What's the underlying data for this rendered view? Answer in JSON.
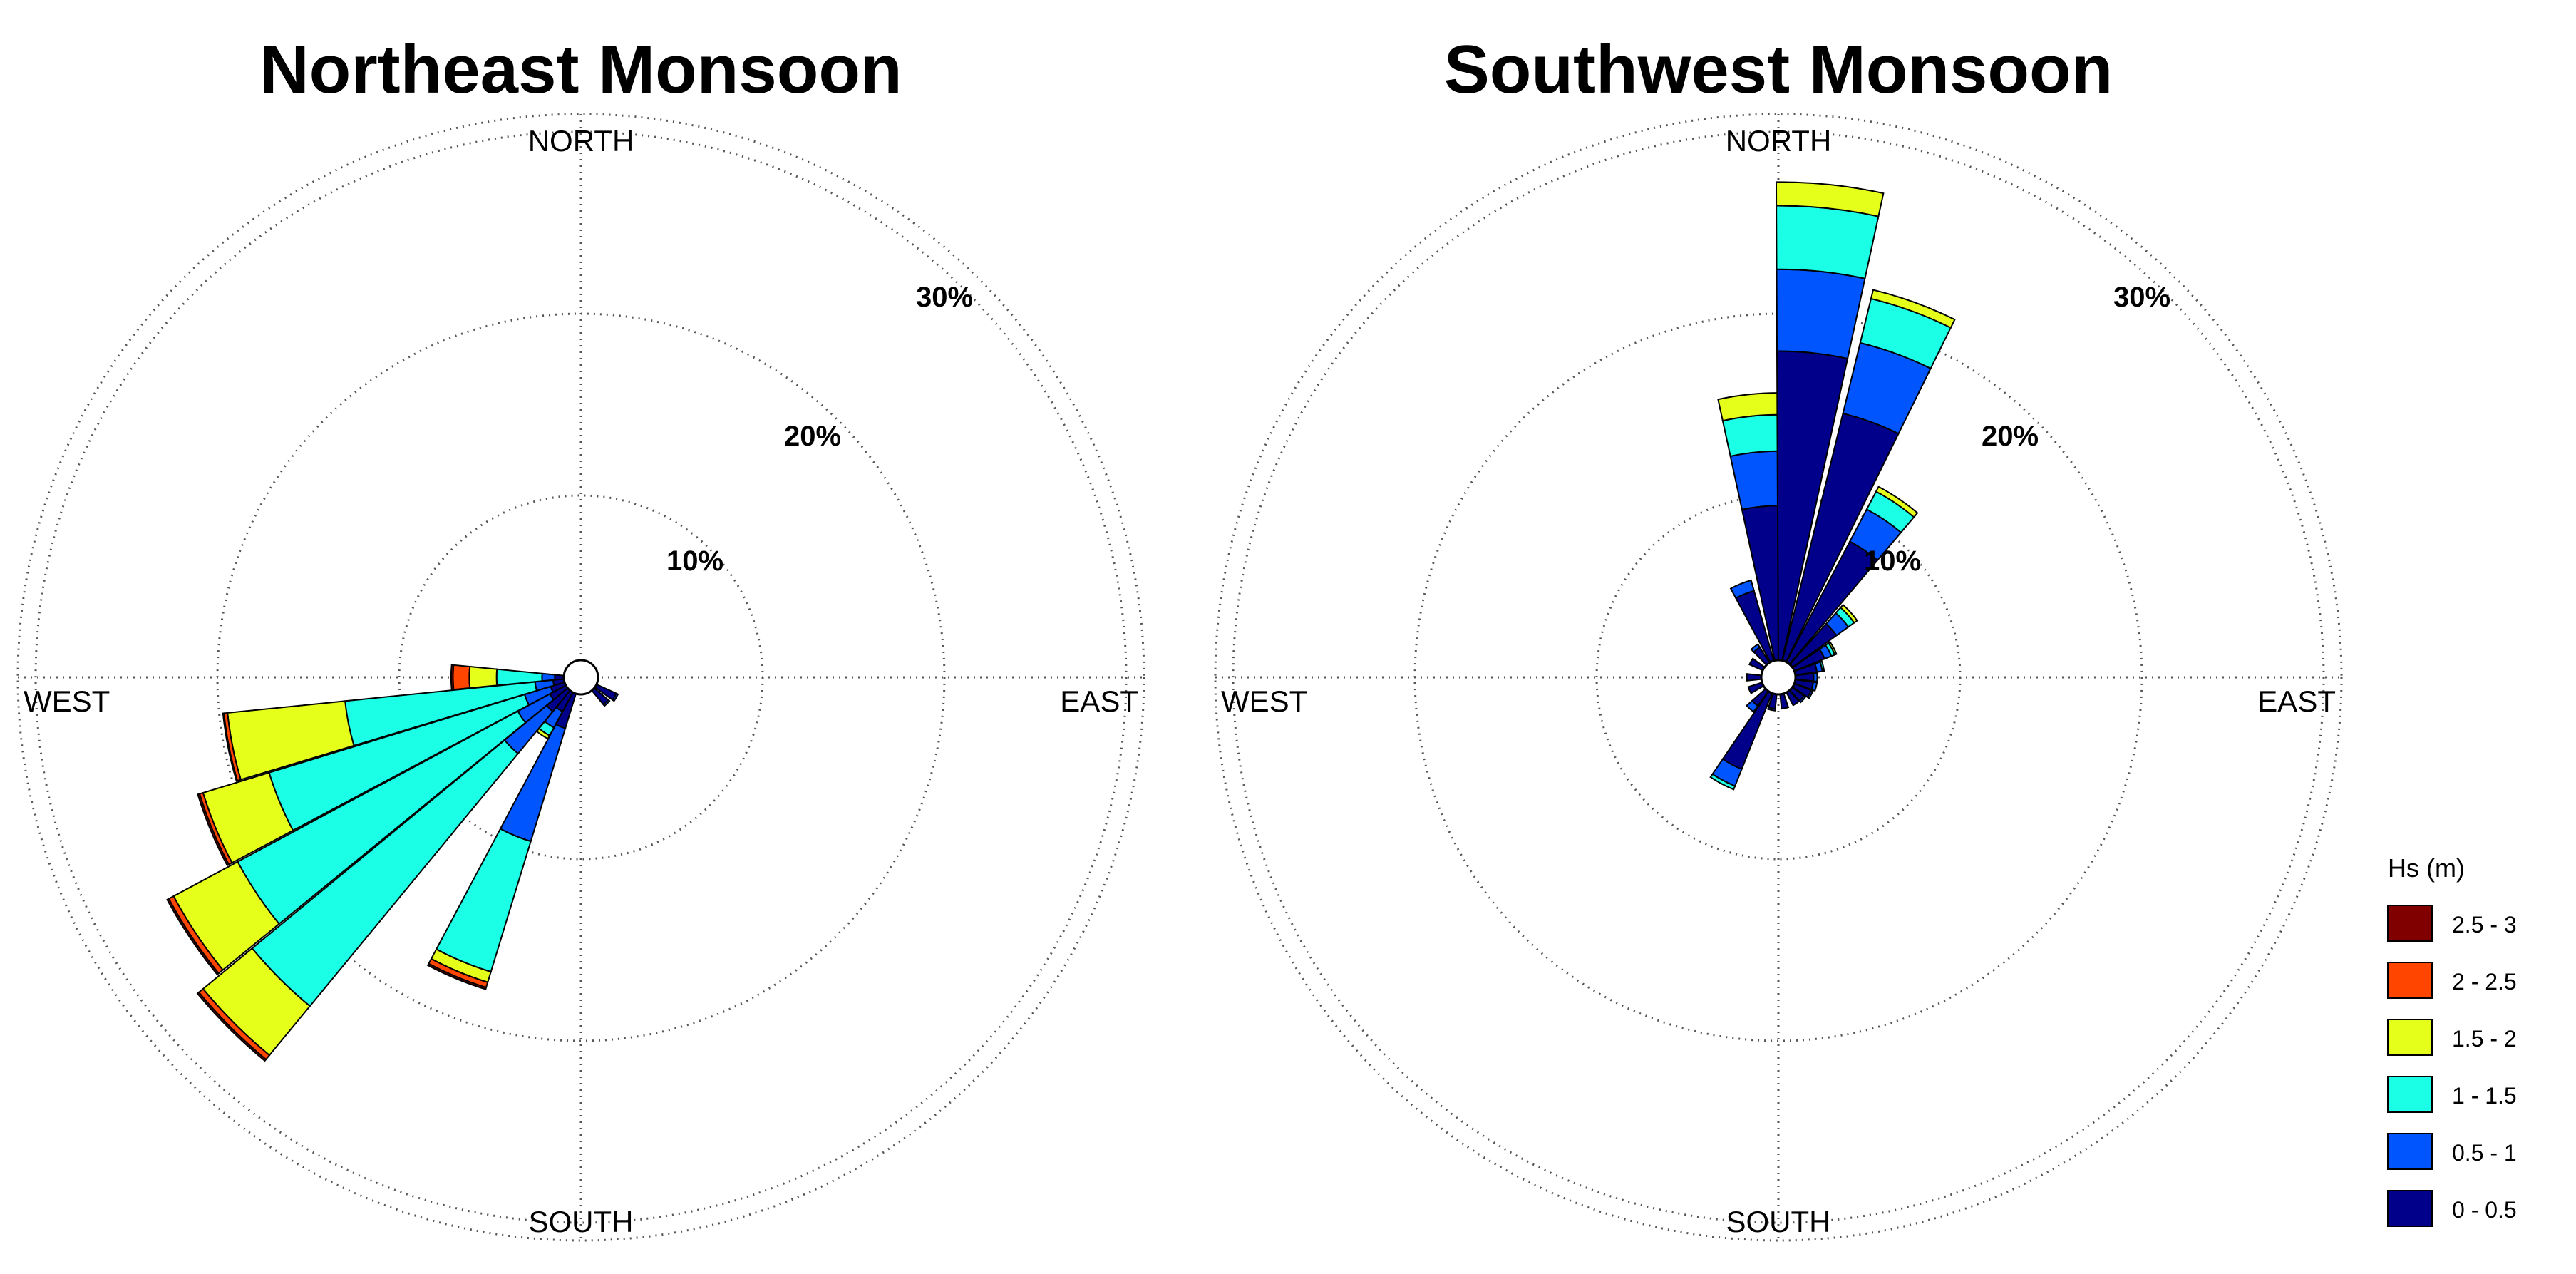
{
  "figure": {
    "hs_legend_title": "Hs (m)"
  },
  "chart_data": [
    {
      "type": "rose",
      "title": "Northeast Monsoon",
      "radial_unit": "%",
      "radial_ticks": [
        10,
        20,
        30
      ],
      "radial_tick_labels": [
        "10%",
        "20%",
        "30%"
      ],
      "rlim": [
        0,
        30
      ],
      "grid": true,
      "direction_labels": {
        "north": "NORTH",
        "east": "EAST",
        "south": "SOUTH",
        "west": "WEST"
      },
      "bins": [
        "0 - 0.5",
        "0.5 - 1",
        "1 - 1.5",
        "1.5 - 2",
        "2 - 2.5",
        "2.5 - 3"
      ],
      "sectors": [
        {
          "direction_deg": 202.5,
          "values": [
            2.0,
            6.5,
            7.5,
            0.6,
            0.3,
            0.1
          ]
        },
        {
          "direction_deg": 225.0,
          "values": [
            1.5,
            3.0,
            18.0,
            3.5,
            0.3,
            0.1
          ]
        },
        {
          "direction_deg": 236.25,
          "values": [
            1.0,
            2.0,
            17.5,
            4.0,
            0.3,
            0.1
          ]
        },
        {
          "direction_deg": 247.5,
          "values": [
            0.8,
            1.5,
            14.7,
            3.8,
            0.2,
            0.1
          ]
        },
        {
          "direction_deg": 258.75,
          "values": [
            0.6,
            1.0,
            10.5,
            6.5,
            0.2,
            0.05
          ]
        },
        {
          "direction_deg": 270.0,
          "values": [
            0.5,
            0.7,
            2.5,
            1.5,
            0.9,
            0.1
          ]
        },
        {
          "direction_deg": 213.75,
          "values": [
            1.2,
            1.0,
            0.5,
            0.2,
            0.0,
            0.0
          ]
        },
        {
          "direction_deg": 120.0,
          "values": [
            1.2,
            0.1,
            0.0,
            0.0,
            0.0,
            0.0
          ]
        },
        {
          "direction_deg": 135.0,
          "values": [
            1.0,
            0.1,
            0.0,
            0.0,
            0.0,
            0.0
          ]
        }
      ]
    },
    {
      "type": "rose",
      "title": "Southwest Monsoon",
      "radial_unit": "%",
      "radial_ticks": [
        10,
        20,
        30
      ],
      "radial_tick_labels": [
        "10%",
        "20%",
        "30%"
      ],
      "rlim": [
        0,
        30
      ],
      "grid": true,
      "direction_labels": {
        "north": "NORTH",
        "east": "EAST",
        "south": "SOUTH",
        "west": "WEST"
      },
      "bins": [
        "0 - 0.5",
        "0.5 - 1",
        "1 - 1.5",
        "1.5 - 2",
        "2 - 2.5",
        "2.5 - 3"
      ],
      "sectors": [
        {
          "direction_deg": 354.0,
          "values": [
            8.5,
            3.0,
            2.0,
            1.2,
            0.0,
            0.0
          ]
        },
        {
          "direction_deg": 6.0,
          "values": [
            17.0,
            4.5,
            3.5,
            1.3,
            0.0,
            0.0
          ]
        },
        {
          "direction_deg": 20.0,
          "values": [
            14.0,
            4.0,
            2.5,
            0.5,
            0.0,
            0.0
          ]
        },
        {
          "direction_deg": 34.0,
          "values": [
            7.5,
            2.0,
            1.1,
            0.3,
            0.0,
            0.0
          ]
        },
        {
          "direction_deg": 48.0,
          "values": [
            3.0,
            0.8,
            0.4,
            0.2,
            0.0,
            0.0
          ]
        },
        {
          "direction_deg": 62.0,
          "values": [
            1.8,
            0.4,
            0.2,
            0.1,
            0.0,
            0.0
          ]
        },
        {
          "direction_deg": 76.0,
          "values": [
            1.2,
            0.3,
            0.1,
            0.0,
            0.0,
            0.0
          ]
        },
        {
          "direction_deg": 90.0,
          "values": [
            1.0,
            0.2,
            0.0,
            0.0,
            0.0,
            0.0
          ]
        },
        {
          "direction_deg": 104.0,
          "values": [
            1.0,
            0.2,
            0.0,
            0.0,
            0.0,
            0.0
          ]
        },
        {
          "direction_deg": 118.0,
          "values": [
            1.0,
            0.1,
            0.0,
            0.0,
            0.0,
            0.0
          ]
        },
        {
          "direction_deg": 132.0,
          "values": [
            0.8,
            0.1,
            0.0,
            0.0,
            0.0,
            0.0
          ]
        },
        {
          "direction_deg": 146.0,
          "values": [
            0.8,
            0.0,
            0.0,
            0.0,
            0.0,
            0.0
          ]
        },
        {
          "direction_deg": 168.0,
          "values": [
            0.8,
            0.0,
            0.0,
            0.0,
            0.0,
            0.0
          ]
        },
        {
          "direction_deg": 192.0,
          "values": [
            0.8,
            0.1,
            0.0,
            0.0,
            0.0,
            0.0
          ]
        },
        {
          "direction_deg": 208.0,
          "values": [
            4.5,
            1.0,
            0.2,
            0.0,
            0.0,
            0.0
          ]
        },
        {
          "direction_deg": 222.0,
          "values": [
            1.0,
            0.4,
            0.0,
            0.0,
            0.0,
            0.0
          ]
        },
        {
          "direction_deg": 246.0,
          "values": [
            0.8,
            0.0,
            0.0,
            0.0,
            0.0,
            0.0
          ]
        },
        {
          "direction_deg": 270.0,
          "values": [
            0.8,
            0.0,
            0.0,
            0.0,
            0.0,
            0.0
          ]
        },
        {
          "direction_deg": 300.0,
          "values": [
            0.8,
            0.0,
            0.0,
            0.0,
            0.0,
            0.0
          ]
        },
        {
          "direction_deg": 322.0,
          "values": [
            1.0,
            0.2,
            0.0,
            0.0,
            0.0,
            0.0
          ]
        },
        {
          "direction_deg": 338.0,
          "values": [
            4.0,
            0.6,
            0.0,
            0.0,
            0.0,
            0.0
          ]
        }
      ]
    }
  ],
  "legend": {
    "title": "Hs (m)",
    "items": [
      {
        "label": "2.5 - 3",
        "color": "#800000"
      },
      {
        "label": "2 - 2.5",
        "color": "#ff4500"
      },
      {
        "label": "1.5 - 2",
        "color": "#e6ff1a"
      },
      {
        "label": "1 - 1.5",
        "color": "#1affe6"
      },
      {
        "label": "0.5 - 1",
        "color": "#0055ff"
      },
      {
        "label": "0 - 0.5",
        "color": "#00008b"
      }
    ]
  }
}
